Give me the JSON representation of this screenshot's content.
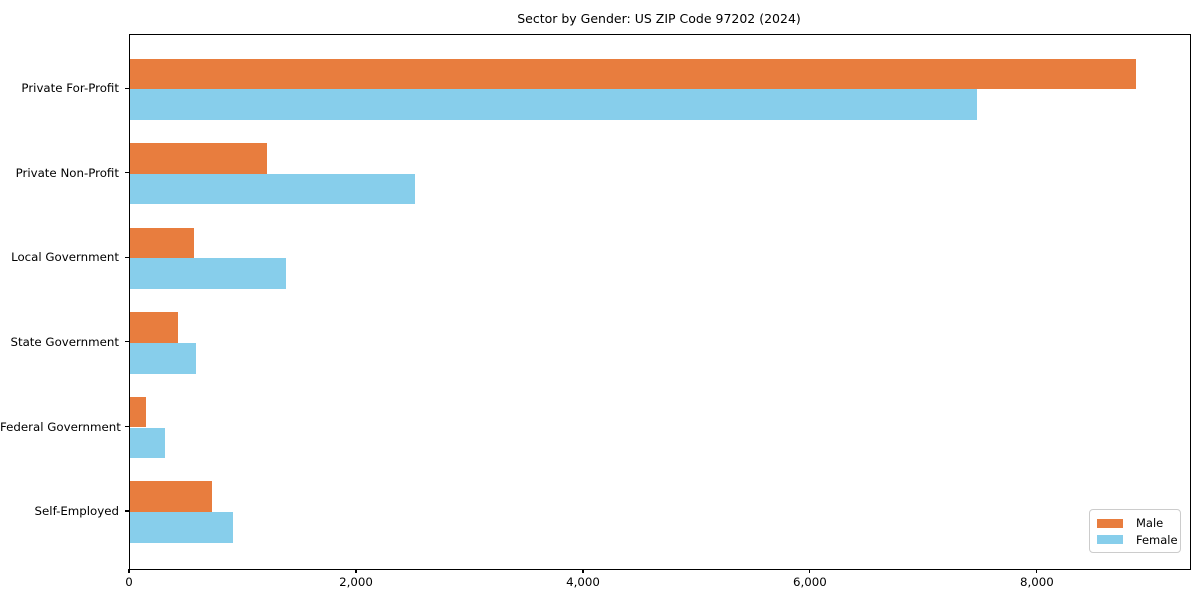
{
  "chart_data": {
    "type": "bar",
    "orientation": "horizontal",
    "title": "Sector by Gender: US ZIP Code 97202 (2024)",
    "categories": [
      "Private For-Profit",
      "Private Non-Profit",
      "Local Government",
      "State Government",
      "Federal Government",
      "Self-Employed"
    ],
    "series": [
      {
        "name": "Male",
        "color": "#e87d3e",
        "values": [
          8860,
          1210,
          565,
          420,
          140,
          720
        ]
      },
      {
        "name": "Female",
        "color": "#87ceeb",
        "values": [
          7460,
          2510,
          1370,
          580,
          310,
          910
        ]
      }
    ],
    "xlabel": "",
    "ylabel": "",
    "xlim": [
      0,
      9340
    ],
    "xticks": [
      0,
      2000,
      4000,
      6000,
      8000
    ],
    "xtick_labels": [
      "0",
      "2,000",
      "4,000",
      "6,000",
      "8,000"
    ],
    "grid": false,
    "legend": {
      "position": "lower right",
      "entries": [
        "Male",
        "Female"
      ]
    },
    "colors": {
      "background": "#ffffff",
      "axis": "#000000",
      "legend_border": "#cccccc"
    }
  }
}
